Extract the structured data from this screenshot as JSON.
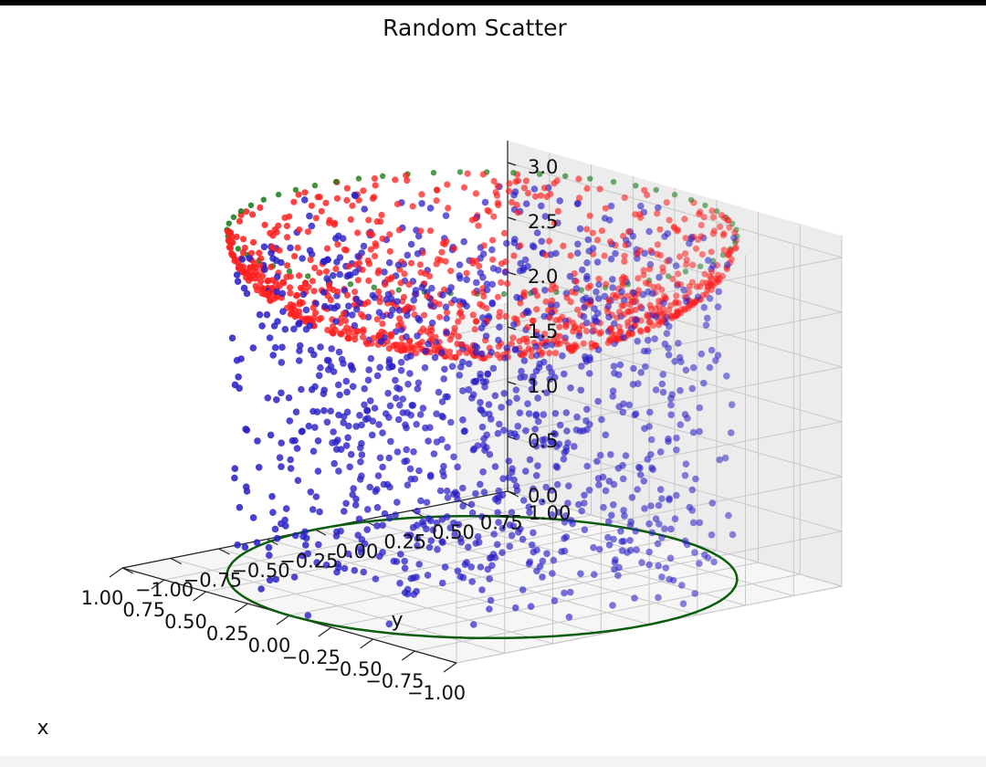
{
  "chart_data": {
    "type": "scatter",
    "title": "Random Scatter",
    "xlabel": "x",
    "ylabel": "y",
    "zlabel": "",
    "xlim": [
      -1.0,
      1.0
    ],
    "ylim": [
      -1.0,
      1.0
    ],
    "zlim": [
      0.0,
      3.2
    ],
    "x_ticks": [
      "−1.00",
      "−0.75",
      "−0.50",
      "−0.25",
      "0.00",
      "0.25",
      "0.50",
      "0.75",
      "1.00"
    ],
    "y_ticks": [
      "−1.00",
      "−0.75",
      "−0.50",
      "−0.25",
      "0.00",
      "0.25",
      "0.50",
      "0.75",
      "1.00"
    ],
    "z_ticks": [
      "0.0",
      "0.5",
      "1.0",
      "1.5",
      "2.0",
      "2.5",
      "3.0"
    ],
    "grid": true,
    "series": [
      {
        "kind": "circle",
        "color": "#0b5d0b",
        "radius": 1.0,
        "z": 0.0
      },
      {
        "kind": "ring_points",
        "color": "#1a7a1a",
        "radius": 1.0,
        "z": 3.14,
        "count": 60
      },
      {
        "kind": "hemisphere_points",
        "color": "#ff2020",
        "center_z": 3.14,
        "radius": 1.0,
        "count": 900
      },
      {
        "kind": "random_points",
        "color": "#2a1fc7",
        "x_range": [
          -1,
          1
        ],
        "y_range": [
          -1,
          1
        ],
        "z_range": [
          0,
          3.14
        ],
        "count": 1100
      }
    ]
  }
}
